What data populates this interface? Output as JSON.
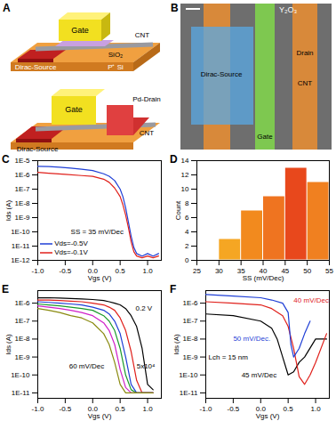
{
  "panel_A": {
    "letter": "A",
    "top": {
      "gate": "Gate",
      "cnt": "CNT",
      "source": "Dirac-Source",
      "oxide": "SiO₂",
      "substrate": "P⁺ Si"
    },
    "bottom": {
      "gate": "Gate",
      "drain": "Pd-Drain",
      "cnt": "CNT",
      "source": "Dirac-Source"
    }
  },
  "panel_B": {
    "letter": "B",
    "labels": {
      "y2o3": "Y₂O₃",
      "drain": "Drain",
      "cnt": "CNT",
      "source": "Dirac-Source",
      "gate": "Gate"
    }
  },
  "chart_data": [
    {
      "panel_label": "C",
      "type": "line",
      "log": "y",
      "grid": false,
      "legend": "lower left",
      "x_label": "Vgs (V)",
      "y_label": "Ids (A)",
      "xlim": [
        -1,
        1.25
      ],
      "xticks": [
        {
          "value": -1,
          "label": "-1.0"
        },
        -0.5,
        {
          "value": 0,
          "label": "0.0"
        },
        0.5,
        {
          "value": 1,
          "label": "1.0"
        }
      ],
      "ylim": [
        1e-12,
        1e-05
      ],
      "yticks": [
        {
          "value": 1e-12,
          "label": "1E-12"
        },
        {
          "value": 1e-11,
          "label": "1E-11"
        },
        {
          "value": 1e-10,
          "label": "1E-10"
        },
        {
          "value": 1e-09,
          "label": "1E-9"
        },
        {
          "value": 1e-08,
          "label": "1E-8"
        },
        {
          "value": 1e-07,
          "label": "1E-7"
        },
        {
          "value": 1e-06,
          "label": "1E-6"
        },
        {
          "value": 1e-05,
          "label": "1E-5"
        }
      ],
      "series": [
        {
          "name": "Vds=-0.5V",
          "color": "#1f3fd6",
          "x": [
            -1,
            -0.8,
            -0.6,
            -0.4,
            -0.2,
            0,
            0.2,
            0.3,
            0.4,
            0.5,
            0.55,
            0.6,
            0.65,
            0.7,
            0.75,
            0.8,
            0.9,
            1.0,
            1.1,
            1.2
          ],
          "values": [
            4e-06,
            3.8e-06,
            3.5e-06,
            3e-06,
            2.5e-06,
            2e-06,
            1.2e-06,
            8e-07,
            4e-07,
            1e-07,
            3e-08,
            5e-09,
            5e-10,
            5e-11,
            8e-12,
            3e-12,
            2e-12,
            3e-12,
            2e-12,
            3e-12
          ]
        },
        {
          "name": "Vds=-0.1V",
          "color": "#e0201b",
          "x": [
            -1,
            -0.8,
            -0.5,
            -0.2,
            0,
            0.2,
            0.3,
            0.4,
            0.5,
            0.55,
            0.6,
            0.65,
            0.7,
            0.75,
            0.8,
            0.9,
            1.0,
            1.1,
            1.2
          ],
          "values": [
            1.5e-06,
            1.3e-06,
            1.1e-06,
            9e-07,
            8e-07,
            5e-07,
            3e-07,
            1.2e-07,
            3e-08,
            8e-09,
            1.5e-09,
            2e-10,
            2e-11,
            4e-12,
            2e-12,
            1.5e-12,
            2e-12,
            1.5e-12,
            2e-12
          ]
        }
      ],
      "annotations": [
        {
          "text": "SS = 35 mV/Dec",
          "x": -0.4,
          "y": 1e-10,
          "color": "#000000"
        }
      ]
    },
    {
      "panel_label": "D",
      "type": "histogram",
      "grid": false,
      "x_label": "SS (mV/Dec)",
      "y_label": "Count",
      "bins": [
        25,
        30,
        35,
        40,
        45,
        50,
        55
      ],
      "counts": [
        0,
        3,
        7,
        9,
        13,
        11
      ],
      "colors": [
        "#f7c26b",
        "#f5a623",
        "#f28a1e",
        "#ef7420",
        "#e8481c",
        "#f08020"
      ],
      "xlim": [
        25,
        55
      ],
      "xticks": [
        25,
        30,
        35,
        40,
        45,
        50,
        55
      ],
      "ylim": [
        0,
        14
      ],
      "yticks": [
        0,
        2,
        4,
        6,
        8,
        10,
        12,
        14
      ]
    },
    {
      "panel_label": "E",
      "type": "line",
      "log": "y",
      "grid": false,
      "x_label": "Vgs (V)",
      "y_label": "Ids (A)",
      "xlim": [
        -1,
        1.25
      ],
      "xticks": [
        {
          "value": -1,
          "label": "-1.0"
        },
        -0.5,
        {
          "value": 0,
          "label": "0.0"
        },
        0.5,
        {
          "value": 1,
          "label": "1.0"
        }
      ],
      "ylim": [
        5e-12,
        5e-06
      ],
      "yticks": [
        {
          "value": 1e-11,
          "label": "1E-11"
        },
        {
          "value": 1e-10,
          "label": "1E-10"
        },
        {
          "value": 1e-09,
          "label": "1E-9"
        },
        {
          "value": 1e-08,
          "label": "1E-8"
        },
        {
          "value": 1e-07,
          "label": "1E-7"
        },
        {
          "value": 1e-06,
          "label": "1E-6"
        }
      ],
      "x": [
        -1,
        -0.8,
        -0.6,
        -0.4,
        -0.2,
        0,
        0.2,
        0.3,
        0.4,
        0.5,
        0.6,
        0.7,
        0.8,
        0.9,
        1.0,
        1.1
      ],
      "series": [
        {
          "color": "#000000",
          "values": [
            2e-06,
            2e-06,
            1.9e-06,
            1.8e-06,
            1.7e-06,
            1.6e-06,
            1.4e-06,
            1.2e-06,
            1e-06,
            8e-07,
            5e-07,
            2e-07,
            5e-08,
            3e-09,
            3e-11,
            1.5e-11
          ]
        },
        {
          "color": "#e0201b",
          "values": [
            1.5e-06,
            1.5e-06,
            1.4e-06,
            1.3e-06,
            1.2e-06,
            1e-06,
            8e-07,
            6e-07,
            4e-07,
            1.5e-07,
            3e-08,
            2e-09,
            5e-11,
            1e-11,
            1e-11,
            1e-11
          ]
        },
        {
          "color": "#1f3fd6",
          "values": [
            1.2e-06,
            1.1e-06,
            1e-06,
            9e-07,
            8e-07,
            6e-07,
            4e-07,
            2.5e-07,
            1e-07,
            2e-08,
            1e-09,
            3e-11,
            1e-11,
            1e-11,
            1e-11,
            1e-11
          ]
        },
        {
          "color": "#1a9a2a",
          "values": [
            9e-07,
            8e-07,
            7e-07,
            6e-07,
            5e-07,
            4e-07,
            2e-07,
            1e-07,
            3e-08,
            3e-09,
            1e-10,
            1.5e-11,
            1e-11,
            1e-11,
            1e-11,
            1e-11
          ]
        },
        {
          "color": "#d020c8",
          "values": [
            7e-07,
            6e-07,
            5e-07,
            4e-07,
            3e-07,
            2e-07,
            8e-08,
            3e-08,
            5e-09,
            2e-10,
            2e-11,
            1e-11,
            1e-11,
            1e-11,
            1e-11,
            1e-11
          ]
        },
        {
          "color": "#8a8a10",
          "values": [
            5e-07,
            4e-07,
            3e-07,
            2e-07,
            1.5e-07,
            8e-08,
            2e-08,
            5e-09,
            5e-10,
            3e-11,
            1e-11,
            1e-11,
            1e-11,
            1e-11,
            1e-11,
            1e-11
          ]
        }
      ],
      "annotations": [
        {
          "text": "0.2 V",
          "x": 0.78,
          "y": 5e-07,
          "color": "#000000"
        },
        {
          "text": "5x10⁴",
          "x": 0.8,
          "y": 3e-10,
          "color": "#000000"
        },
        {
          "text": "60 mV/Dec",
          "x": -0.43,
          "y": 3e-10,
          "color": "#000000"
        }
      ]
    },
    {
      "panel_label": "F",
      "type": "line",
      "log": "y",
      "grid": false,
      "x_label": "Vgs (V)",
      "y_label": "Ids (A)",
      "xlim": [
        -1,
        1.25
      ],
      "xticks": [
        {
          "value": -1,
          "label": "-1.0"
        },
        -0.5,
        {
          "value": 0,
          "label": "0.0"
        },
        0.5,
        {
          "value": 1,
          "label": "1.0"
        }
      ],
      "ylim": [
        5e-12,
        5e-06
      ],
      "yticks": [
        {
          "value": 1e-11,
          "label": "1E-11"
        },
        {
          "value": 1e-10,
          "label": "1E-10"
        },
        {
          "value": 1e-09,
          "label": "1E-9"
        },
        {
          "value": 1e-08,
          "label": "1E-8"
        },
        {
          "value": 1e-07,
          "label": "1E-7"
        },
        {
          "value": 1e-06,
          "label": "1E-6"
        }
      ],
      "series": [
        {
          "color": "#000000",
          "x": [
            -1,
            -0.5,
            0,
            0.2,
            0.3,
            0.4,
            0.5,
            0.6,
            0.7,
            0.8,
            1.0,
            1.2
          ],
          "values": [
            2.5e-07,
            2e-07,
            1e-07,
            4e-08,
            1e-08,
            1e-09,
            1e-10,
            1.5e-10,
            5e-10,
            1e-09,
            1e-08,
            1e-08
          ]
        },
        {
          "color": "#e0201b",
          "x": [
            -1,
            -0.5,
            0,
            0.2,
            0.4,
            0.5,
            0.6,
            0.7,
            0.8,
            0.9,
            1.0,
            1.2
          ],
          "values": [
            1.2e-06,
            1e-06,
            8e-07,
            5e-07,
            2e-07,
            5e-08,
            3e-09,
            8e-11,
            3e-11,
            1e-10,
            5e-10,
            2e-08
          ]
        },
        {
          "color": "#1f3fd6",
          "x": [
            -1,
            -0.5,
            0,
            0.2,
            0.4,
            0.5,
            0.55,
            0.6,
            0.7,
            0.8,
            0.9
          ],
          "values": [
            3e-06,
            2.5e-06,
            2e-06,
            1.5e-06,
            1e-06,
            3e-07,
            5e-09,
            1e-09,
            3e-09,
            2e-08,
            1e-07
          ]
        }
      ],
      "annotations": [
        {
          "text": "50 mV/Dec.",
          "x": -0.5,
          "y": 1e-08,
          "color": "#1f3fd6"
        },
        {
          "text": "40 mV/Dec",
          "x": 0.6,
          "y": 1.5e-06,
          "color": "#e0201b"
        },
        {
          "text": "Lch = 15 nm",
          "x": -0.95,
          "y": 1e-09,
          "color": "#000000"
        },
        {
          "text": "45 mV/Dec",
          "x": -0.35,
          "y": 1e-10,
          "color": "#000000"
        }
      ]
    }
  ]
}
